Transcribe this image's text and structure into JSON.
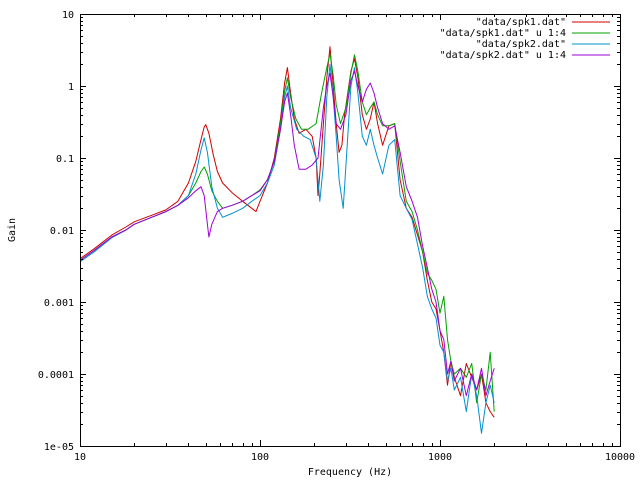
{
  "chart_data": {
    "type": "line",
    "title": "",
    "xlabel": "Frequency (Hz)",
    "ylabel": "Gain",
    "xscale": "log",
    "yscale": "log",
    "xlim": [
      10,
      10000
    ],
    "ylim": [
      1e-05,
      10
    ],
    "xticks": [
      {
        "value": 10,
        "label": "10"
      },
      {
        "value": 100,
        "label": "100"
      },
      {
        "value": 1000,
        "label": "1000"
      },
      {
        "value": 10000,
        "label": "10000"
      }
    ],
    "yticks": [
      {
        "value": 1e-05,
        "label": "1e-05"
      },
      {
        "value": 0.0001,
        "label": "0.0001"
      },
      {
        "value": 0.001,
        "label": "0.001"
      },
      {
        "value": 0.01,
        "label": "0.01"
      },
      {
        "value": 0.1,
        "label": "0.1"
      },
      {
        "value": 1,
        "label": "1"
      },
      {
        "value": 10,
        "label": "10"
      }
    ],
    "grid": false,
    "legend_position": "top-right",
    "series": [
      {
        "name": "\"data/spk1.dat\"",
        "color": "#d00000",
        "points": [
          [
            10,
            0.004
          ],
          [
            12,
            0.0055
          ],
          [
            15,
            0.0085
          ],
          [
            18,
            0.011
          ],
          [
            20,
            0.013
          ],
          [
            25,
            0.016
          ],
          [
            30,
            0.019
          ],
          [
            35,
            0.025
          ],
          [
            40,
            0.045
          ],
          [
            44,
            0.09
          ],
          [
            47,
            0.18
          ],
          [
            49,
            0.27
          ],
          [
            50,
            0.29
          ],
          [
            52,
            0.22
          ],
          [
            55,
            0.11
          ],
          [
            58,
            0.065
          ],
          [
            62,
            0.045
          ],
          [
            70,
            0.033
          ],
          [
            80,
            0.025
          ],
          [
            90,
            0.02
          ],
          [
            95,
            0.018
          ],
          [
            100,
            0.025
          ],
          [
            110,
            0.045
          ],
          [
            120,
            0.1
          ],
          [
            130,
            0.35
          ],
          [
            137,
            1.1
          ],
          [
            142,
            1.8
          ],
          [
            147,
            0.9
          ],
          [
            155,
            0.35
          ],
          [
            165,
            0.22
          ],
          [
            180,
            0.25
          ],
          [
            195,
            0.2
          ],
          [
            205,
            0.1
          ],
          [
            210,
            0.03
          ],
          [
            215,
            0.06
          ],
          [
            225,
            0.3
          ],
          [
            235,
            1.3
          ],
          [
            245,
            3.5
          ],
          [
            255,
            1.0
          ],
          [
            265,
            0.3
          ],
          [
            275,
            0.12
          ],
          [
            285,
            0.15
          ],
          [
            295,
            0.4
          ],
          [
            320,
            1.6
          ],
          [
            335,
            2.4
          ],
          [
            350,
            1.3
          ],
          [
            370,
            0.4
          ],
          [
            390,
            0.25
          ],
          [
            410,
            0.35
          ],
          [
            430,
            0.6
          ],
          [
            450,
            0.3
          ],
          [
            480,
            0.15
          ],
          [
            520,
            0.28
          ],
          [
            560,
            0.3
          ],
          [
            600,
            0.05
          ],
          [
            650,
            0.02
          ],
          [
            700,
            0.015
          ],
          [
            800,
            0.005
          ],
          [
            850,
            0.002
          ],
          [
            900,
            0.001
          ],
          [
            950,
            0.0008
          ],
          [
            1000,
            0.0004
          ],
          [
            1050,
            0.0002
          ],
          [
            1100,
            7e-05
          ],
          [
            1150,
            0.00015
          ],
          [
            1200,
            9e-05
          ],
          [
            1300,
            5e-05
          ],
          [
            1400,
            0.00014
          ],
          [
            1500,
            9e-05
          ],
          [
            1600,
            6e-05
          ],
          [
            1700,
            0.0001
          ],
          [
            1800,
            4e-05
          ],
          [
            1900,
            3e-05
          ],
          [
            2000,
            2.5e-05
          ]
        ]
      },
      {
        "name": "\"data/spk1.dat\" u 1:4",
        "color": "#00a000",
        "points": [
          [
            10,
            0.0038
          ],
          [
            12,
            0.0052
          ],
          [
            15,
            0.008
          ],
          [
            18,
            0.01
          ],
          [
            20,
            0.012
          ],
          [
            25,
            0.015
          ],
          [
            30,
            0.018
          ],
          [
            35,
            0.022
          ],
          [
            40,
            0.03
          ],
          [
            44,
            0.045
          ],
          [
            47,
            0.065
          ],
          [
            49,
            0.075
          ],
          [
            51,
            0.06
          ],
          [
            54,
            0.035
          ],
          [
            58,
            0.025
          ],
          [
            62,
            0.02
          ],
          [
            70,
            0.022
          ],
          [
            80,
            0.025
          ],
          [
            90,
            0.03
          ],
          [
            100,
            0.036
          ],
          [
            110,
            0.05
          ],
          [
            120,
            0.09
          ],
          [
            130,
            0.3
          ],
          [
            137,
            0.85
          ],
          [
            142,
            1.3
          ],
          [
            148,
            0.7
          ],
          [
            158,
            0.35
          ],
          [
            170,
            0.25
          ],
          [
            185,
            0.25
          ],
          [
            205,
            0.3
          ],
          [
            220,
            0.8
          ],
          [
            235,
            1.8
          ],
          [
            245,
            2.8
          ],
          [
            255,
            1.4
          ],
          [
            265,
            0.55
          ],
          [
            280,
            0.3
          ],
          [
            300,
            0.5
          ],
          [
            320,
            1.5
          ],
          [
            335,
            2.7
          ],
          [
            350,
            1.6
          ],
          [
            370,
            0.6
          ],
          [
            390,
            0.4
          ],
          [
            410,
            0.5
          ],
          [
            430,
            0.6
          ],
          [
            450,
            0.4
          ],
          [
            480,
            0.28
          ],
          [
            520,
            0.28
          ],
          [
            560,
            0.3
          ],
          [
            600,
            0.09
          ],
          [
            650,
            0.025
          ],
          [
            700,
            0.018
          ],
          [
            750,
            0.01
          ],
          [
            800,
            0.005
          ],
          [
            850,
            0.0025
          ],
          [
            900,
            0.002
          ],
          [
            950,
            0.0015
          ],
          [
            1000,
            0.0007
          ],
          [
            1050,
            0.0012
          ],
          [
            1100,
            0.0003
          ],
          [
            1150,
            0.00015
          ],
          [
            1200,
            0.0001
          ],
          [
            1300,
            0.00012
          ],
          [
            1400,
            9e-05
          ],
          [
            1500,
            0.00014
          ],
          [
            1600,
            4e-05
          ],
          [
            1700,
            0.0001
          ],
          [
            1800,
            6e-05
          ],
          [
            1900,
            0.0002
          ],
          [
            2000,
            3e-05
          ]
        ]
      },
      {
        "name": "\"data/spk2.dat\"",
        "color": "#0090d0",
        "points": [
          [
            10,
            0.0036
          ],
          [
            12,
            0.005
          ],
          [
            15,
            0.0078
          ],
          [
            18,
            0.01
          ],
          [
            20,
            0.012
          ],
          [
            25,
            0.015
          ],
          [
            30,
            0.018
          ],
          [
            35,
            0.022
          ],
          [
            40,
            0.03
          ],
          [
            44,
            0.06
          ],
          [
            47,
            0.13
          ],
          [
            49,
            0.19
          ],
          [
            51,
            0.12
          ],
          [
            54,
            0.04
          ],
          [
            58,
            0.02
          ],
          [
            62,
            0.015
          ],
          [
            70,
            0.017
          ],
          [
            80,
            0.02
          ],
          [
            90,
            0.025
          ],
          [
            100,
            0.03
          ],
          [
            110,
            0.045
          ],
          [
            120,
            0.08
          ],
          [
            130,
            0.25
          ],
          [
            137,
            0.7
          ],
          [
            142,
            1.0
          ],
          [
            148,
            0.5
          ],
          [
            160,
            0.25
          ],
          [
            175,
            0.2
          ],
          [
            190,
            0.18
          ],
          [
            205,
            0.1
          ],
          [
            215,
            0.025
          ],
          [
            225,
            0.08
          ],
          [
            235,
            0.7
          ],
          [
            245,
            2.0
          ],
          [
            255,
            0.7
          ],
          [
            265,
            0.2
          ],
          [
            275,
            0.05
          ],
          [
            290,
            0.02
          ],
          [
            305,
            0.15
          ],
          [
            320,
            1.0
          ],
          [
            335,
            1.8
          ],
          [
            350,
            0.8
          ],
          [
            370,
            0.2
          ],
          [
            390,
            0.15
          ],
          [
            410,
            0.25
          ],
          [
            430,
            0.15
          ],
          [
            450,
            0.1
          ],
          [
            480,
            0.06
          ],
          [
            520,
            0.15
          ],
          [
            560,
            0.18
          ],
          [
            600,
            0.03
          ],
          [
            650,
            0.02
          ],
          [
            700,
            0.014
          ],
          [
            800,
            0.003
          ],
          [
            850,
            0.0012
          ],
          [
            900,
            0.0008
          ],
          [
            950,
            0.0006
          ],
          [
            1000,
            0.00025
          ],
          [
            1050,
            0.0002
          ],
          [
            1100,
            8e-05
          ],
          [
            1150,
            0.00012
          ],
          [
            1200,
            6e-05
          ],
          [
            1300,
            9e-05
          ],
          [
            1400,
            3e-05
          ],
          [
            1500,
            0.0001
          ],
          [
            1600,
            5e-05
          ],
          [
            1700,
            1.5e-05
          ],
          [
            1800,
            4e-05
          ],
          [
            1900,
            7e-05
          ],
          [
            2000,
            4e-05
          ]
        ]
      },
      {
        "name": "\"data/spk2.dat\" u 1:4",
        "color": "#a000d8",
        "points": [
          [
            10,
            0.0038
          ],
          [
            12,
            0.0052
          ],
          [
            15,
            0.008
          ],
          [
            18,
            0.01
          ],
          [
            20,
            0.012
          ],
          [
            25,
            0.015
          ],
          [
            30,
            0.018
          ],
          [
            35,
            0.022
          ],
          [
            40,
            0.028
          ],
          [
            44,
            0.035
          ],
          [
            47,
            0.04
          ],
          [
            49,
            0.03
          ],
          [
            51,
            0.012
          ],
          [
            52,
            0.008
          ],
          [
            54,
            0.012
          ],
          [
            58,
            0.018
          ],
          [
            62,
            0.02
          ],
          [
            70,
            0.022
          ],
          [
            80,
            0.025
          ],
          [
            90,
            0.03
          ],
          [
            100,
            0.035
          ],
          [
            110,
            0.05
          ],
          [
            120,
            0.09
          ],
          [
            130,
            0.25
          ],
          [
            137,
            0.6
          ],
          [
            142,
            0.8
          ],
          [
            148,
            0.4
          ],
          [
            155,
            0.15
          ],
          [
            165,
            0.07
          ],
          [
            180,
            0.07
          ],
          [
            195,
            0.08
          ],
          [
            210,
            0.1
          ],
          [
            225,
            0.5
          ],
          [
            235,
            1.0
          ],
          [
            245,
            1.5
          ],
          [
            255,
            0.7
          ],
          [
            265,
            0.3
          ],
          [
            280,
            0.25
          ],
          [
            300,
            0.4
          ],
          [
            320,
            1.2
          ],
          [
            335,
            1.6
          ],
          [
            350,
            1.0
          ],
          [
            370,
            0.6
          ],
          [
            390,
            0.9
          ],
          [
            410,
            1.1
          ],
          [
            430,
            0.8
          ],
          [
            450,
            0.5
          ],
          [
            480,
            0.3
          ],
          [
            520,
            0.25
          ],
          [
            560,
            0.28
          ],
          [
            600,
            0.12
          ],
          [
            650,
            0.04
          ],
          [
            700,
            0.025
          ],
          [
            750,
            0.015
          ],
          [
            800,
            0.006
          ],
          [
            850,
            0.003
          ],
          [
            900,
            0.0015
          ],
          [
            950,
            0.001
          ],
          [
            1000,
            0.0004
          ],
          [
            1050,
            0.0003
          ],
          [
            1100,
            0.0001
          ],
          [
            1150,
            0.00015
          ],
          [
            1200,
            8e-05
          ],
          [
            1300,
            0.00012
          ],
          [
            1400,
            5e-05
          ],
          [
            1500,
            0.0001
          ],
          [
            1600,
            6e-05
          ],
          [
            1700,
            0.00012
          ],
          [
            1800,
            5e-05
          ],
          [
            1900,
            8e-05
          ],
          [
            2000,
            0.00012
          ]
        ]
      }
    ]
  }
}
